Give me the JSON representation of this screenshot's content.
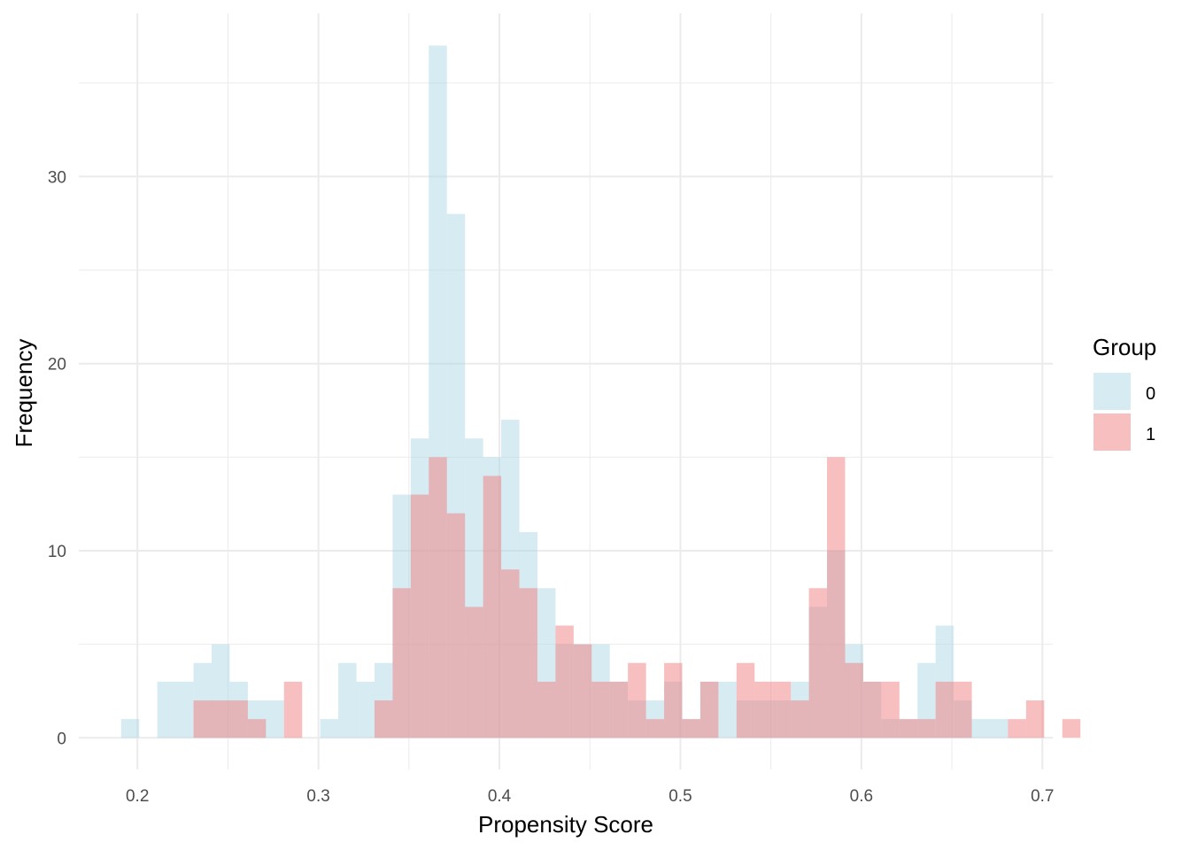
{
  "chart_data": {
    "type": "histogram",
    "xlabel": "Propensity Score",
    "ylabel": "Frequency",
    "xlim": [
      0.17,
      0.71
    ],
    "ylim": [
      -1.8,
      37.5
    ],
    "x_ticks": [
      0.2,
      0.3,
      0.4,
      0.5,
      0.6,
      0.7
    ],
    "x_tick_labels": [
      "0.2",
      "0.3",
      "0.4",
      "0.5",
      "0.6",
      "0.7"
    ],
    "y_ticks": [
      0,
      10,
      20,
      30
    ],
    "y_tick_labels": [
      "0",
      "10",
      "20",
      "30"
    ],
    "grid": true,
    "bin_start": 0.191,
    "bin_width": 0.01,
    "legend": {
      "title": "Group",
      "position": "right"
    },
    "series": [
      {
        "name": "0",
        "color": "#add8e6",
        "opacity": 0.5,
        "counts": [
          1,
          0,
          3,
          3,
          4,
          5,
          3,
          2,
          2,
          0,
          0,
          1,
          4,
          3,
          4,
          13,
          16,
          37,
          28,
          16,
          15,
          17,
          11,
          8,
          5,
          5,
          5,
          3,
          2,
          2,
          3,
          1,
          3,
          3,
          2,
          2,
          2,
          3,
          7,
          10,
          5,
          3,
          1,
          1,
          4,
          6,
          2,
          1,
          1,
          0,
          0,
          0,
          0,
          0,
          0
        ]
      },
      {
        "name": "1",
        "color": "#f08080",
        "opacity": 0.5,
        "counts": [
          0,
          0,
          0,
          0,
          2,
          2,
          2,
          1,
          0,
          3,
          0,
          0,
          0,
          0,
          2,
          8,
          13,
          15,
          12,
          7,
          14,
          9,
          8,
          3,
          6,
          5,
          3,
          3,
          4,
          1,
          4,
          1,
          3,
          0,
          4,
          3,
          3,
          2,
          8,
          15,
          4,
          3,
          3,
          1,
          1,
          3,
          3,
          0,
          0,
          1,
          2,
          0,
          1,
          0,
          0
        ]
      }
    ]
  }
}
